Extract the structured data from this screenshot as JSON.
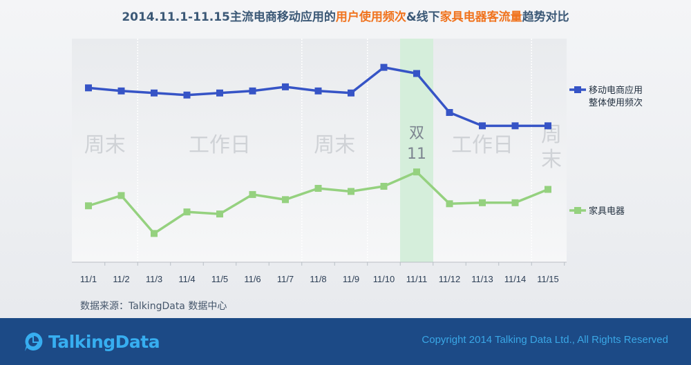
{
  "title": {
    "part1": "2014.11.1-11.15主流电商移动应用的",
    "highlight1": "用户使用频次",
    "part2": "&线下",
    "highlight2": "家具电器客流量",
    "part3": "趋势对比"
  },
  "source": "数据来源：TalkingData 数据中心",
  "footer": {
    "logo": "TalkingData",
    "copyright": "Copyright 2014 Talking Data Ltd., All Rights Reserved"
  },
  "colors": {
    "series_blue": "#3654c6",
    "series_green": "#95d17f",
    "highlight_band": "#d5eedb",
    "footer_bg": "#1c4a86",
    "title_accent": "#f0731e"
  },
  "chart_data": {
    "type": "line",
    "categories": [
      "11/1",
      "11/2",
      "11/3",
      "11/4",
      "11/5",
      "11/6",
      "11/7",
      "11/8",
      "11/9",
      "11/10",
      "11/11",
      "11/12",
      "11/13",
      "11/14",
      "11/15"
    ],
    "series": [
      {
        "name": "移动电商应用\n整体使用频次",
        "color": "#3654c6",
        "values": [
          71,
          69.5,
          68.5,
          67.5,
          68.5,
          69.5,
          71.5,
          69.5,
          68.5,
          81,
          78,
          59,
          52.5,
          52.5,
          52.5
        ]
      },
      {
        "name": "家具电器",
        "color": "#95d17f",
        "values": [
          13.5,
          18.5,
          0,
          10.5,
          9.5,
          19,
          16.5,
          22,
          20.5,
          23,
          30,
          14.5,
          15,
          15,
          21.5
        ]
      }
    ],
    "ylim": [
      -14,
      95
    ],
    "grid": false,
    "legend": "right",
    "period_labels": [
      {
        "text": "周末",
        "from": "11/1",
        "to": "11/2"
      },
      {
        "text": "工作日",
        "from": "11/3",
        "to": "11/7"
      },
      {
        "text": "周末",
        "from": "11/8",
        "to": "11/9"
      },
      {
        "text": "双11",
        "from": "11/11",
        "to": "11/11"
      },
      {
        "text": "工作日",
        "from": "11/12",
        "to": "11/14"
      },
      {
        "text": "周末",
        "from": "11/15",
        "to": "11/15"
      }
    ],
    "highlight": {
      "category": "11/11"
    }
  }
}
